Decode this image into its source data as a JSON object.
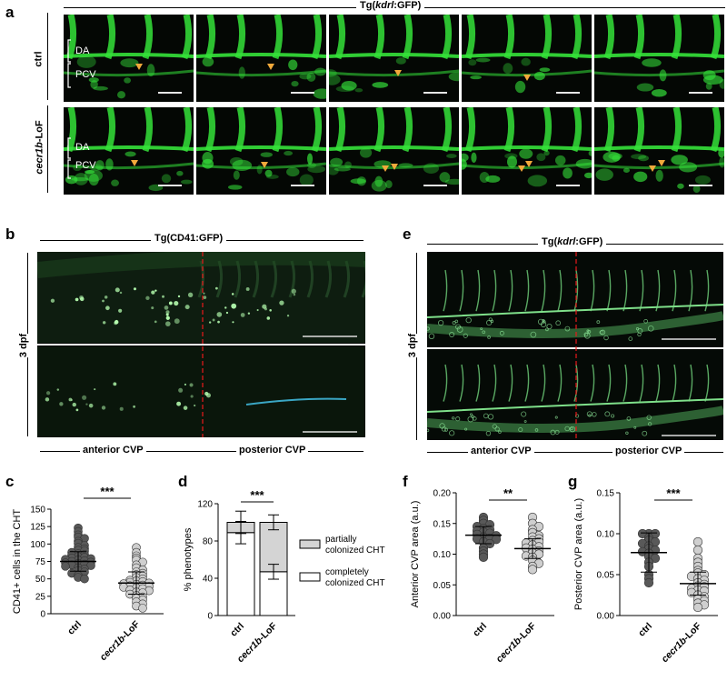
{
  "panel_a": {
    "letter": "a",
    "title": "Tg(kdrl:GFP)",
    "title_pre": "Tg(",
    "title_gene": "kdrl",
    "title_post": ":GFP)",
    "row_ctrl": "ctrl",
    "row_lof": "cecr1b-LoF",
    "row_lof_gene": "cecr1b",
    "row_lof_suffix": "-LoF",
    "label_da": "DA",
    "label_pcv": "PCV"
  },
  "panel_b": {
    "letter": "b",
    "title": "Tg(CD41:GFP)",
    "side": "3 dpf",
    "anterior": "anterior CVP",
    "posterior": "posterior CVP"
  },
  "panel_e": {
    "letter": "e",
    "title_pre": "Tg(",
    "title_gene": "kdrl",
    "title_post": ":GFP)",
    "side": "3 dpf",
    "anterior": "anterior CVP",
    "posterior": "posterior CVP"
  },
  "colors": {
    "arrowhead": "#f2a93b",
    "gfp": "#35e23a",
    "dashed": "#e8191b",
    "ctrl_dot": "#595959",
    "lof_dot": "#cfcfcf"
  },
  "chart_data": [
    {
      "panel": "c",
      "type": "scatter",
      "ylabel": "CD41+ cells in the CHT",
      "categories": [
        "ctrl",
        "cecr1b-LoF"
      ],
      "ylim": [
        0,
        150
      ],
      "yticks": [
        0,
        25,
        50,
        75,
        100,
        125,
        150
      ],
      "significance": "***",
      "mean": [
        75,
        44
      ],
      "sd": [
        [
          61,
          89
        ],
        [
          28,
          60
        ]
      ],
      "series": [
        {
          "values": [
            123,
            118,
            113,
            110,
            108,
            104,
            101,
            98,
            95,
            93,
            91,
            90,
            88,
            86,
            85,
            84,
            82,
            81,
            80,
            79,
            78,
            77,
            76,
            75,
            74,
            73,
            72,
            71,
            70,
            69,
            68,
            66,
            64,
            62,
            60,
            58,
            55,
            52,
            50
          ]
        },
        {
          "values": [
            95,
            88,
            83,
            80,
            77,
            74,
            70,
            66,
            63,
            60,
            58,
            56,
            54,
            52,
            50,
            48,
            47,
            46,
            45,
            44,
            43,
            42,
            41,
            40,
            39,
            38,
            37,
            36,
            34,
            33,
            31,
            30,
            28,
            26,
            24,
            22,
            20,
            17,
            14,
            11,
            8
          ]
        }
      ]
    },
    {
      "panel": "d",
      "type": "bar",
      "ylabel": "% phenotypes",
      "categories": [
        "ctrl",
        "cecr1b-LoF"
      ],
      "ylim": [
        0,
        120
      ],
      "yticks": [
        0,
        40,
        80,
        120
      ],
      "significance": "***",
      "series": [
        {
          "name": "completely colonized CHT",
          "values": [
            89,
            47
          ],
          "sd": [
            [
              77,
              101
            ],
            [
              39,
              55
            ]
          ]
        },
        {
          "name": "partially colonized CHT",
          "values": [
            11,
            53
          ],
          "total_sd": [
            [
              88,
              112
            ],
            [
              92,
              108
            ]
          ]
        }
      ]
    },
    {
      "panel": "f",
      "type": "scatter",
      "ylabel": "Anterior CVP area (a.u.)",
      "categories": [
        "ctrl",
        "cecr1b-LoF"
      ],
      "ylim": [
        0,
        0.2
      ],
      "yticks": [
        0.0,
        0.05,
        0.1,
        0.15,
        0.2
      ],
      "tick_labels": [
        "0.00",
        "0.05",
        "0.10",
        "0.15",
        "0.20"
      ],
      "significance": "**",
      "mean": [
        0.131,
        0.109
      ],
      "sd": [
        [
          0.117,
          0.145
        ],
        [
          0.093,
          0.125
        ]
      ],
      "series": [
        {
          "values": [
            0.16,
            0.155,
            0.15,
            0.148,
            0.145,
            0.142,
            0.14,
            0.138,
            0.136,
            0.134,
            0.132,
            0.13,
            0.128,
            0.126,
            0.125,
            0.124,
            0.12,
            0.117,
            0.11,
            0.105,
            0.1,
            0.095
          ]
        },
        {
          "values": [
            0.16,
            0.15,
            0.145,
            0.14,
            0.135,
            0.13,
            0.128,
            0.125,
            0.122,
            0.12,
            0.118,
            0.115,
            0.112,
            0.11,
            0.108,
            0.105,
            0.102,
            0.1,
            0.097,
            0.095,
            0.09,
            0.085,
            0.08,
            0.075
          ]
        }
      ]
    },
    {
      "panel": "g",
      "type": "scatter",
      "ylabel": "Posterior CVP area (a.u.)",
      "categories": [
        "ctrl",
        "cecr1b-LoF"
      ],
      "ylim": [
        0,
        0.15
      ],
      "yticks": [
        0.0,
        0.05,
        0.1,
        0.15
      ],
      "tick_labels": [
        "0.00",
        "0.05",
        "0.10",
        "0.15"
      ],
      "significance": "***",
      "mean": [
        0.077,
        0.039
      ],
      "sd": [
        [
          0.053,
          0.101
        ],
        [
          0.025,
          0.053
        ]
      ],
      "series": [
        {
          "values": [
            0.1,
            0.1,
            0.1,
            0.095,
            0.092,
            0.09,
            0.088,
            0.085,
            0.082,
            0.08,
            0.078,
            0.076,
            0.072,
            0.07,
            0.065,
            0.06,
            0.05,
            0.045,
            0.04
          ]
        },
        {
          "values": [
            0.09,
            0.08,
            0.07,
            0.065,
            0.06,
            0.055,
            0.052,
            0.05,
            0.048,
            0.045,
            0.043,
            0.04,
            0.038,
            0.036,
            0.035,
            0.033,
            0.031,
            0.03,
            0.028,
            0.025,
            0.023,
            0.02,
            0.018,
            0.015,
            0.013,
            0.01
          ]
        }
      ]
    }
  ]
}
